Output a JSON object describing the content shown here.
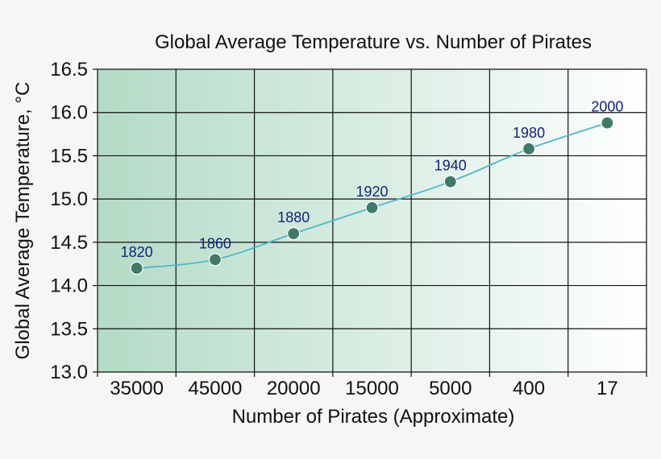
{
  "chart_data": {
    "type": "line",
    "title": "Global Average Temperature vs. Number of Pirates",
    "xlabel": "Number of Pirates (Approximate)",
    "ylabel": "Global Average Temperature, °C",
    "categories": [
      "35000",
      "45000",
      "20000",
      "15000",
      "5000",
      "400",
      "17"
    ],
    "series": [
      {
        "values": [
          14.2,
          14.3,
          14.6,
          14.9,
          15.2,
          15.58,
          15.88
        ],
        "point_labels": [
          "1820",
          "1860",
          "1880",
          "1920",
          "1940",
          "1980",
          "2000"
        ]
      }
    ],
    "ylim": [
      13.0,
      16.5
    ],
    "yticks": [
      "13.0",
      "13.5",
      "14.0",
      "14.5",
      "15.0",
      "15.5",
      "16.0",
      "16.5"
    ],
    "grid": true,
    "colors": {
      "line": "#4fb8c9",
      "marker_fill": "#3e7a68",
      "marker_stroke": "#ffffff",
      "point_label": "#12237a",
      "background_left": "#b3dbc6",
      "background_right": "#ffffff"
    }
  }
}
